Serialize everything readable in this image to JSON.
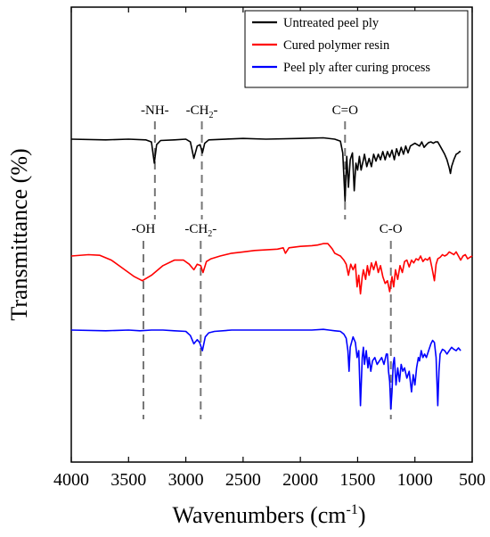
{
  "chart_data": {
    "type": "line",
    "xlabel": "Wavenumbers (cm",
    "xlabel_sup": "-1",
    "xlabel_close": ")",
    "ylabel": "Transmittance (%)",
    "xlim": [
      4000,
      500
    ],
    "x_reversed": true,
    "xticks": [
      4000,
      3500,
      3000,
      2500,
      2000,
      1500,
      1000,
      500
    ],
    "grid": false,
    "y_ticks_shown": false,
    "legend_position": "top-right",
    "series": [
      {
        "name": "Untreated peel ply",
        "color": "#000000",
        "baseline": 0,
        "x_range": [
          4000,
          600
        ],
        "points": [
          [
            4000,
            0
          ],
          [
            3700,
            -1
          ],
          [
            3500,
            0
          ],
          [
            3350,
            -1
          ],
          [
            3300,
            -4
          ],
          [
            3275,
            -35
          ],
          [
            3255,
            -8
          ],
          [
            3220,
            -2
          ],
          [
            3100,
            -1
          ],
          [
            3000,
            0
          ],
          [
            2960,
            -4
          ],
          [
            2930,
            -28
          ],
          [
            2900,
            -10
          ],
          [
            2875,
            -8
          ],
          [
            2855,
            -20
          ],
          [
            2835,
            -6
          ],
          [
            2800,
            -1
          ],
          [
            2500,
            1
          ],
          [
            2300,
            0
          ],
          [
            2000,
            1
          ],
          [
            1800,
            2
          ],
          [
            1700,
            0
          ],
          [
            1650,
            -3
          ],
          [
            1630,
            -20
          ],
          [
            1610,
            -90
          ],
          [
            1595,
            -25
          ],
          [
            1580,
            -70
          ],
          [
            1565,
            -30
          ],
          [
            1545,
            -20
          ],
          [
            1530,
            -75
          ],
          [
            1515,
            -35
          ],
          [
            1500,
            -45
          ],
          [
            1485,
            -25
          ],
          [
            1470,
            -45
          ],
          [
            1450,
            -30
          ],
          [
            1440,
            -22
          ],
          [
            1420,
            -40
          ],
          [
            1400,
            -28
          ],
          [
            1380,
            -40
          ],
          [
            1360,
            -22
          ],
          [
            1340,
            -32
          ],
          [
            1320,
            -22
          ],
          [
            1300,
            -30
          ],
          [
            1280,
            -18
          ],
          [
            1260,
            -30
          ],
          [
            1240,
            -18
          ],
          [
            1220,
            -26
          ],
          [
            1200,
            -16
          ],
          [
            1180,
            -30
          ],
          [
            1160,
            -14
          ],
          [
            1140,
            -24
          ],
          [
            1120,
            -12
          ],
          [
            1100,
            -22
          ],
          [
            1080,
            -10
          ],
          [
            1060,
            -20
          ],
          [
            1040,
            -10
          ],
          [
            1000,
            -6
          ],
          [
            960,
            -10
          ],
          [
            940,
            -4
          ],
          [
            920,
            -12
          ],
          [
            900,
            -8
          ],
          [
            880,
            -5
          ],
          [
            860,
            -4
          ],
          [
            840,
            -6
          ],
          [
            820,
            -4
          ],
          [
            800,
            -4
          ],
          [
            780,
            -10
          ],
          [
            760,
            -16
          ],
          [
            740,
            -22
          ],
          [
            720,
            -30
          ],
          [
            700,
            -42
          ],
          [
            690,
            -50
          ],
          [
            680,
            -40
          ],
          [
            660,
            -30
          ],
          [
            640,
            -22
          ],
          [
            620,
            -20
          ],
          [
            610,
            -18
          ],
          [
            600,
            -18
          ]
        ]
      },
      {
        "name": "Cured polymer resin",
        "color": "#ff0000",
        "baseline": 0,
        "x_range": [
          4000,
          500
        ],
        "points": [
          [
            4000,
            0
          ],
          [
            3850,
            2
          ],
          [
            3750,
            1
          ],
          [
            3650,
            -6
          ],
          [
            3550,
            -18
          ],
          [
            3450,
            -30
          ],
          [
            3380,
            -36
          ],
          [
            3300,
            -28
          ],
          [
            3200,
            -14
          ],
          [
            3100,
            -6
          ],
          [
            3020,
            -6
          ],
          [
            2970,
            -12
          ],
          [
            2930,
            -20
          ],
          [
            2900,
            -12
          ],
          [
            2870,
            -14
          ],
          [
            2850,
            -24
          ],
          [
            2820,
            -8
          ],
          [
            2780,
            -4
          ],
          [
            2700,
            0
          ],
          [
            2600,
            4
          ],
          [
            2500,
            6
          ],
          [
            2400,
            8
          ],
          [
            2300,
            9
          ],
          [
            2200,
            10
          ],
          [
            2150,
            12
          ],
          [
            2130,
            4
          ],
          [
            2100,
            12
          ],
          [
            2000,
            14
          ],
          [
            1900,
            15
          ],
          [
            1850,
            16
          ],
          [
            1800,
            18
          ],
          [
            1760,
            18
          ],
          [
            1740,
            14
          ],
          [
            1720,
            10
          ],
          [
            1700,
            4
          ],
          [
            1650,
            0
          ],
          [
            1620,
            -6
          ],
          [
            1600,
            -12
          ],
          [
            1580,
            -28
          ],
          [
            1560,
            -12
          ],
          [
            1540,
            -20
          ],
          [
            1520,
            -12
          ],
          [
            1505,
            -45
          ],
          [
            1490,
            -28
          ],
          [
            1475,
            -55
          ],
          [
            1460,
            -30
          ],
          [
            1450,
            -20
          ],
          [
            1430,
            -34
          ],
          [
            1415,
            -14
          ],
          [
            1400,
            -28
          ],
          [
            1380,
            -10
          ],
          [
            1360,
            -20
          ],
          [
            1340,
            -8
          ],
          [
            1320,
            -24
          ],
          [
            1300,
            -14
          ],
          [
            1280,
            -30
          ],
          [
            1260,
            -40
          ],
          [
            1240,
            -36
          ],
          [
            1220,
            -52
          ],
          [
            1200,
            -30
          ],
          [
            1185,
            -45
          ],
          [
            1170,
            -20
          ],
          [
            1150,
            -34
          ],
          [
            1130,
            -14
          ],
          [
            1110,
            -24
          ],
          [
            1090,
            -8
          ],
          [
            1070,
            -6
          ],
          [
            1050,
            -16
          ],
          [
            1030,
            -6
          ],
          [
            1010,
            -10
          ],
          [
            990,
            -4
          ],
          [
            970,
            -6
          ],
          [
            950,
            0
          ],
          [
            930,
            -8
          ],
          [
            910,
            -4
          ],
          [
            890,
            -6
          ],
          [
            870,
            -2
          ],
          [
            850,
            -18
          ],
          [
            830,
            -36
          ],
          [
            815,
            -12
          ],
          [
            800,
            -4
          ],
          [
            780,
            -2
          ],
          [
            760,
            2
          ],
          [
            740,
            0
          ],
          [
            720,
            2
          ],
          [
            700,
            6
          ],
          [
            680,
            4
          ],
          [
            660,
            2
          ],
          [
            640,
            6
          ],
          [
            620,
            0
          ],
          [
            600,
            -6
          ],
          [
            580,
            0
          ],
          [
            560,
            2
          ],
          [
            540,
            -4
          ],
          [
            520,
            -2
          ],
          [
            500,
            0
          ]
        ]
      },
      {
        "name": "Peel ply after curing process",
        "color": "#0000ff",
        "baseline": 0,
        "x_range": [
          4000,
          600
        ],
        "points": [
          [
            4000,
            0
          ],
          [
            3700,
            -1
          ],
          [
            3500,
            0
          ],
          [
            3400,
            -1
          ],
          [
            3300,
            0
          ],
          [
            3200,
            0
          ],
          [
            3100,
            -1
          ],
          [
            3000,
            -2
          ],
          [
            2960,
            -8
          ],
          [
            2930,
            -20
          ],
          [
            2900,
            -14
          ],
          [
            2880,
            -18
          ],
          [
            2855,
            -30
          ],
          [
            2830,
            -10
          ],
          [
            2800,
            -4
          ],
          [
            2750,
            -2
          ],
          [
            2600,
            0
          ],
          [
            2400,
            0
          ],
          [
            2200,
            0
          ],
          [
            2000,
            0
          ],
          [
            1900,
            0
          ],
          [
            1800,
            1
          ],
          [
            1750,
            0
          ],
          [
            1700,
            -1
          ],
          [
            1650,
            -2
          ],
          [
            1620,
            -6
          ],
          [
            1600,
            -12
          ],
          [
            1585,
            -30
          ],
          [
            1575,
            -60
          ],
          [
            1565,
            -25
          ],
          [
            1540,
            -10
          ],
          [
            1520,
            -18
          ],
          [
            1505,
            -40
          ],
          [
            1490,
            -30
          ],
          [
            1475,
            -110
          ],
          [
            1460,
            -40
          ],
          [
            1450,
            -25
          ],
          [
            1440,
            -50
          ],
          [
            1425,
            -30
          ],
          [
            1410,
            -55
          ],
          [
            1400,
            -40
          ],
          [
            1385,
            -60
          ],
          [
            1370,
            -45
          ],
          [
            1350,
            -40
          ],
          [
            1330,
            -50
          ],
          [
            1310,
            -45
          ],
          [
            1290,
            -40
          ],
          [
            1270,
            -50
          ],
          [
            1250,
            -35
          ],
          [
            1240,
            -35
          ],
          [
            1230,
            -60
          ],
          [
            1220,
            -75
          ],
          [
            1210,
            -115
          ],
          [
            1200,
            -90
          ],
          [
            1190,
            -50
          ],
          [
            1180,
            -40
          ],
          [
            1165,
            -80
          ],
          [
            1150,
            -55
          ],
          [
            1135,
            -75
          ],
          [
            1120,
            -50
          ],
          [
            1105,
            -60
          ],
          [
            1090,
            -55
          ],
          [
            1070,
            -70
          ],
          [
            1050,
            -60
          ],
          [
            1030,
            -90
          ],
          [
            1015,
            -65
          ],
          [
            1000,
            -80
          ],
          [
            985,
            -55
          ],
          [
            970,
            -40
          ],
          [
            960,
            -45
          ],
          [
            945,
            -30
          ],
          [
            930,
            -40
          ],
          [
            915,
            -35
          ],
          [
            900,
            -40
          ],
          [
            880,
            -30
          ],
          [
            860,
            -20
          ],
          [
            845,
            -15
          ],
          [
            830,
            -18
          ],
          [
            815,
            -40
          ],
          [
            800,
            -110
          ],
          [
            790,
            -60
          ],
          [
            780,
            -35
          ],
          [
            760,
            -28
          ],
          [
            740,
            -30
          ],
          [
            720,
            -35
          ],
          [
            700,
            -30
          ],
          [
            680,
            -25
          ],
          [
            660,
            -28
          ],
          [
            640,
            -30
          ],
          [
            620,
            -26
          ],
          [
            600,
            -30
          ]
        ]
      }
    ],
    "annotations": [
      {
        "text": "-NH-",
        "x": 3270,
        "series_index": 0
      },
      {
        "text": "-CH",
        "sub": "2",
        "tail": "-",
        "x": 2860,
        "series_index": 0
      },
      {
        "text": "C=O",
        "x": 1610,
        "series_index": 0
      },
      {
        "text": "-OH",
        "x": 3370,
        "series_index": 1
      },
      {
        "text": "-CH",
        "sub": "2",
        "tail": "-",
        "x": 2870,
        "series_index": 1
      },
      {
        "text": "C-O",
        "x": 1210,
        "series_index": 1
      }
    ]
  }
}
